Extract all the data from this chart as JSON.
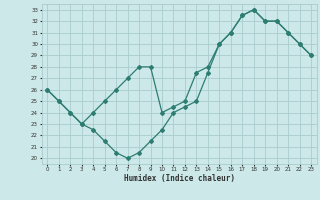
{
  "line1_x": [
    0,
    1,
    2,
    3,
    4,
    5,
    6,
    7,
    8,
    9,
    10,
    11,
    12,
    13,
    14,
    15,
    16,
    17,
    18,
    19,
    20,
    21,
    22,
    23
  ],
  "line1_y": [
    26,
    25,
    24,
    23,
    24,
    25,
    26,
    27,
    28,
    28,
    24,
    24.5,
    25,
    27.5,
    28,
    30,
    31,
    32.5,
    33,
    32,
    32,
    31,
    30,
    29
  ],
  "line2_x": [
    0,
    1,
    2,
    3,
    4,
    5,
    6,
    7,
    8,
    9,
    10,
    11,
    12,
    13,
    14,
    15,
    16,
    17,
    18,
    19,
    20,
    21,
    22,
    23
  ],
  "line2_y": [
    26,
    25,
    24,
    23,
    22.5,
    21.5,
    20.5,
    20,
    20.5,
    21.5,
    22.5,
    24,
    24.5,
    25,
    27.5,
    30,
    31,
    32.5,
    33,
    32,
    32,
    31,
    30,
    29
  ],
  "line_color": "#2e7d72",
  "bg_color": "#cce8e8",
  "grid_color": "#aacccc",
  "xlabel": "Humidex (Indice chaleur)",
  "xlim": [
    -0.5,
    23.5
  ],
  "ylim": [
    19.5,
    33.5
  ],
  "yticks": [
    20,
    21,
    22,
    23,
    24,
    25,
    26,
    27,
    28,
    29,
    30,
    31,
    32,
    33
  ],
  "xticks": [
    0,
    1,
    2,
    3,
    4,
    5,
    6,
    7,
    8,
    9,
    10,
    11,
    12,
    13,
    14,
    15,
    16,
    17,
    18,
    19,
    20,
    21,
    22,
    23
  ]
}
